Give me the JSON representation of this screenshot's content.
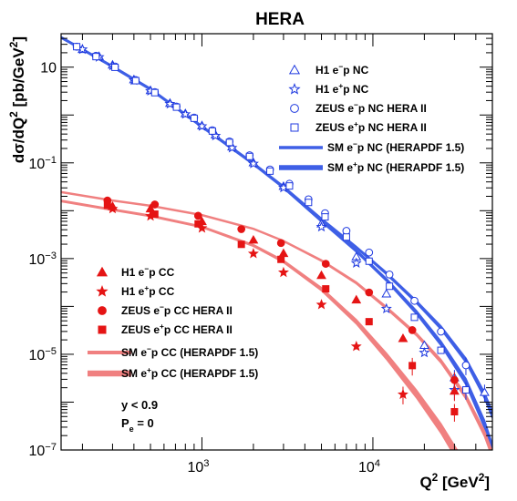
{
  "chart_data": {
    "type": "scatter",
    "title": "HERA",
    "xlabel": "Q^2 [GeV^2]",
    "ylabel": "dσ/dQ^2 [pb/GeV^2]",
    "x_scale": "log",
    "y_scale": "log",
    "xlim": [
      150,
      50000
    ],
    "ylim": [
      1e-07,
      50
    ],
    "x_tick_labels": [
      {
        "value": 1000,
        "base": "10",
        "exp": "3"
      },
      {
        "value": 10000,
        "base": "10",
        "exp": "4"
      }
    ],
    "y_tick_labels": [
      {
        "value": 10,
        "base": "10",
        "exp": ""
      },
      {
        "value": 0.1,
        "base": "10",
        "exp": "-1"
      },
      {
        "value": 0.001,
        "base": "10",
        "exp": "-3"
      },
      {
        "value": 1e-05,
        "base": "10",
        "exp": "-5"
      },
      {
        "value": 1e-07,
        "base": "10",
        "exp": "-7"
      }
    ],
    "annotations": [
      "y < 0.9",
      "P_e = 0"
    ],
    "series": [
      {
        "name": "H1 e⁻p NC",
        "marker": "open-triangle",
        "color": "#1f3ae0",
        "x": [
          200,
          250,
          300,
          400,
          500,
          650,
          800,
          1000,
          1200,
          1500,
          2000,
          3000,
          5000,
          8000,
          12000,
          20000,
          30000,
          45000
        ],
        "y": [
          23.5,
          16.8,
          11.1,
          5.47,
          3.26,
          1.76,
          1.07,
          0.599,
          0.385,
          0.216,
          0.101,
          0.0324,
          0.00531,
          0.00109,
          0.000183,
          1.54e-05,
          3.24e-06,
          1.6e-06
        ]
      },
      {
        "name": "H1 e⁺p NC",
        "marker": "open-star",
        "color": "#1f3ae0",
        "x": [
          200,
          250,
          300,
          400,
          500,
          650,
          800,
          1000,
          1200,
          1500,
          2000,
          3000,
          5000,
          8000,
          12000,
          20000,
          30000
        ],
        "y": [
          23.5,
          16.2,
          10.7,
          5.3,
          3.17,
          1.7,
          1.04,
          0.582,
          0.367,
          0.206,
          0.0962,
          0.0302,
          0.00459,
          0.000805,
          8.94e-05,
          1.08e-05,
          1.8e-06
        ]
      },
      {
        "name": "ZEUS e⁻p NC HERA II",
        "marker": "open-circle",
        "color": "#1f3ae0",
        "x": [
          185,
          240,
          310,
          410,
          530,
          710,
          900,
          1150,
          1450,
          1900,
          2500,
          3250,
          4200,
          5250,
          7000,
          9500,
          12500,
          17500,
          25000,
          35000
        ],
        "y": [
          26.8,
          17.3,
          10.3,
          5.39,
          3.02,
          1.5,
          0.882,
          0.48,
          0.279,
          0.144,
          0.0725,
          0.0365,
          0.0173,
          0.00885,
          0.00379,
          0.00134,
          0.000465,
          0.000131,
          2.98e-05,
          5.9e-06
        ]
      },
      {
        "name": "ZEUS e⁺p NC HERA II",
        "marker": "open-square",
        "color": "#1f3ae0",
        "x": [
          185,
          240,
          310,
          410,
          530,
          710,
          900,
          1150,
          1450,
          1900,
          2500,
          3250,
          4200,
          5250,
          7000,
          9500,
          12500,
          17500,
          25000,
          35000
        ],
        "y": [
          26.8,
          16.6,
          9.91,
          5.22,
          2.93,
          1.46,
          0.854,
          0.462,
          0.267,
          0.136,
          0.0672,
          0.0329,
          0.0149,
          0.00742,
          0.00282,
          0.000881,
          0.000264,
          5.92e-05,
          1.21e-05,
          1.8e-06
        ]
      },
      {
        "name": "H1 e⁻p CC",
        "marker": "filled-triangle",
        "color": "#e51414",
        "x": [
          300,
          500,
          1000,
          2000,
          3000,
          5000,
          8000,
          15000,
          30000
        ],
        "y": [
          0.0123,
          0.011,
          0.00593,
          0.00244,
          0.00128,
          0.000446,
          0.000137,
          2.14e-05,
          1.7e-06
        ]
      },
      {
        "name": "H1 e⁺p CC",
        "marker": "filled-star",
        "color": "#e51414",
        "x": [
          300,
          500,
          1000,
          2000,
          3000,
          5000,
          8000,
          15000
        ],
        "y": [
          0.011,
          0.00773,
          0.00433,
          0.00127,
          0.000513,
          0.000109,
          1.46e-05,
          1.45e-06
        ]
      },
      {
        "name": "ZEUS e⁻p CC HERA II",
        "marker": "filled-circle",
        "color": "#e51414",
        "x": [
          280,
          530,
          950,
          1700,
          2900,
          5300,
          9500,
          17000,
          30000
        ],
        "y": [
          0.0164,
          0.0135,
          0.00784,
          0.00412,
          0.00211,
          0.000778,
          0.000196,
          3.2e-05,
          2.9e-06
        ]
      },
      {
        "name": "ZEUS e⁺p CC HERA II",
        "marker": "filled-square",
        "color": "#e51414",
        "x": [
          280,
          530,
          950,
          1700,
          2900,
          5300,
          9500,
          17000,
          30000
        ],
        "y": [
          0.013,
          0.00849,
          0.00531,
          0.00198,
          0.000962,
          0.000233,
          4.8e-05,
          5.8e-06,
          6.3e-07
        ]
      }
    ],
    "bands": [
      {
        "name": "SM e⁻p NC (HERAPDF 1.5)",
        "color": "#3e5fe6",
        "x": [
          150,
          200,
          300,
          500,
          1000,
          2000,
          3000,
          5000,
          8000,
          12000,
          18000,
          25000,
          35000,
          45000,
          50000
        ],
        "y": [
          42,
          23.6,
          10.4,
          3.51,
          0.58,
          0.098,
          0.0318,
          0.0067,
          0.00172,
          0.00049,
          0.000124,
          3.6e-05,
          7.5e-06,
          1.4e-06,
          5.5e-07
        ],
        "width": [
          0.03,
          0.03,
          0.03,
          0.03,
          0.03,
          0.03,
          0.03,
          0.04,
          0.04,
          0.05,
          0.06,
          0.08,
          0.1,
          0.14,
          0.16
        ]
      },
      {
        "name": "SM e⁺p NC (HERAPDF 1.5)",
        "color": "#3e5fe6",
        "x": [
          150,
          200,
          300,
          500,
          1000,
          2000,
          3000,
          5000,
          8000,
          12000,
          18000,
          25000,
          35000,
          45000,
          50000
        ],
        "y": [
          41.5,
          23.3,
          10.2,
          3.44,
          0.565,
          0.094,
          0.0302,
          0.0061,
          0.00144,
          0.00036,
          7.5e-05,
          1.7e-05,
          2.7e-06,
          3.5e-07,
          1.1e-07
        ],
        "width": [
          0.03,
          0.03,
          0.03,
          0.03,
          0.03,
          0.03,
          0.03,
          0.04,
          0.05,
          0.06,
          0.08,
          0.1,
          0.14,
          0.18,
          0.2
        ]
      },
      {
        "name": "SM e⁻p CC (HERAPDF 1.5)",
        "color": "#f08080",
        "x": [
          150,
          300,
          500,
          1000,
          2000,
          3000,
          5000,
          8000,
          12000,
          18000,
          25000,
          35000,
          45000,
          50000
        ],
        "y": [
          0.0245,
          0.0163,
          0.0127,
          0.0081,
          0.0042,
          0.00233,
          0.00091,
          0.00031,
          9.4e-05,
          2.6e-05,
          7.2e-06,
          1.3e-06,
          2.2e-07,
          8e-08
        ],
        "width": [
          0.02,
          0.02,
          0.02,
          0.02,
          0.02,
          0.02,
          0.03,
          0.04,
          0.05,
          0.06,
          0.08,
          0.1,
          0.13,
          0.15
        ]
      },
      {
        "name": "SM e⁺p CC (HERAPDF 1.5)",
        "color": "#f08080",
        "x": [
          150,
          300,
          500,
          1000,
          2000,
          3000,
          5000,
          8000,
          12000,
          18000,
          25000,
          35000
        ],
        "y": [
          0.016,
          0.0105,
          0.0078,
          0.0046,
          0.00188,
          0.000875,
          0.00023,
          4.8e-05,
          9.2e-06,
          1.5e-06,
          2.9e-07,
          4e-08
        ],
        "width": [
          0.03,
          0.03,
          0.03,
          0.03,
          0.04,
          0.05,
          0.07,
          0.1,
          0.14,
          0.18,
          0.22,
          0.26
        ]
      }
    ]
  }
}
